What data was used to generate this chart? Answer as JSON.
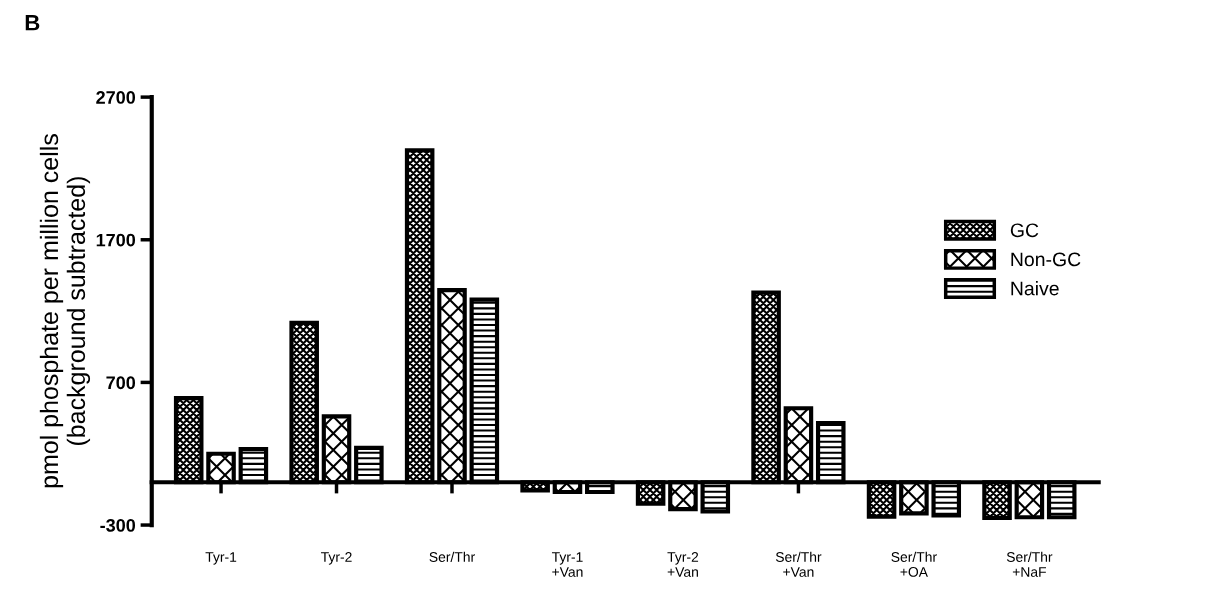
{
  "chart_data": {
    "type": "bar",
    "title": "B",
    "ylabel": "pmol phosphate per million cells\n(background subtracted)",
    "categories": [
      "Tyr-1",
      "Tyr-2",
      "Ser/Thr",
      "Tyr-1\n+Van",
      "Tyr-2\n+Van",
      "Ser/Thr\n+Van",
      "Ser/Thr\n+OA",
      "Ser/Thr\n+NaF"
    ],
    "series": [
      {
        "name": "GC",
        "color": "#000000",
        "values": [
          590,
          1117,
          2327,
          -57,
          -150,
          1330,
          -241,
          -250
        ]
      },
      {
        "name": "Non-GC",
        "color": "#000000",
        "values": [
          200,
          462,
          1347,
          -68,
          -188,
          519,
          -218,
          -245
        ]
      },
      {
        "name": "Naive",
        "color": "#000000",
        "values": [
          232,
          241,
          1280,
          -68,
          -205,
          415,
          -232,
          -245
        ]
      }
    ],
    "ylim": [
      -300,
      2700
    ],
    "yticks": [
      -300,
      700,
      1700,
      2700
    ],
    "grid": false,
    "legend": "top right"
  }
}
